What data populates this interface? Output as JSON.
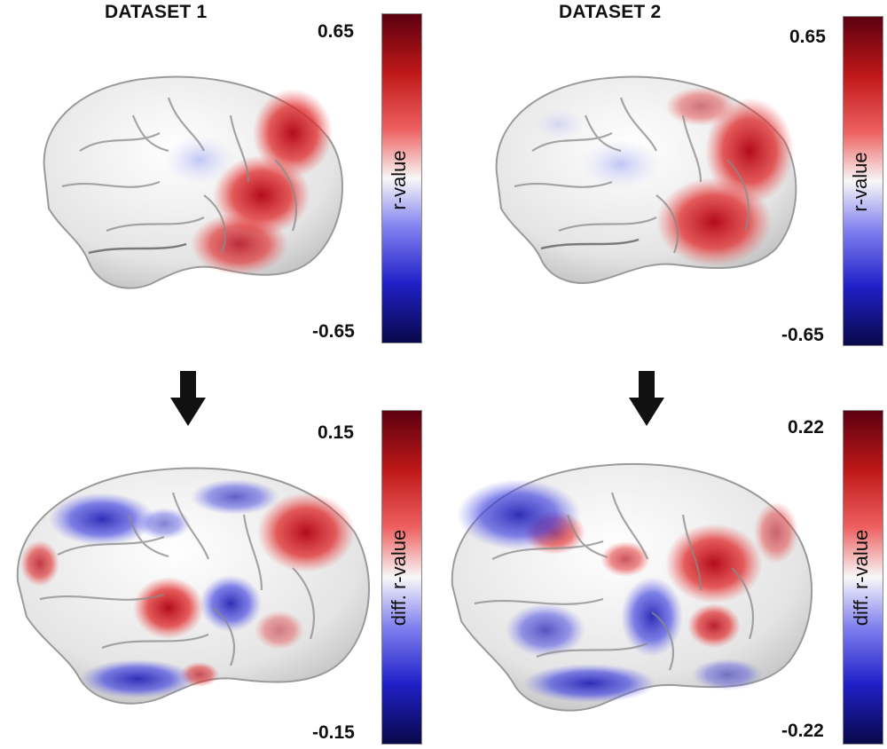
{
  "panels": [
    {
      "title": "DATASET 1",
      "colorbar_label": "r-value",
      "max": "0.65",
      "min": "-0.65"
    },
    {
      "title": "DATASET 2",
      "colorbar_label": "r-value",
      "max": "0.65",
      "min": "-0.65"
    },
    {
      "colorbar_label": "diff. r-value",
      "max": "0.15",
      "min": "-0.15"
    },
    {
      "colorbar_label": "diff. r-value",
      "max": "0.22",
      "min": "-0.22"
    }
  ],
  "colors": {
    "positive": "#7a0010",
    "mid": "#f2f2f2",
    "negative": "#10106e"
  },
  "icons": [
    "down-arrow-icon",
    "down-arrow-icon"
  ]
}
